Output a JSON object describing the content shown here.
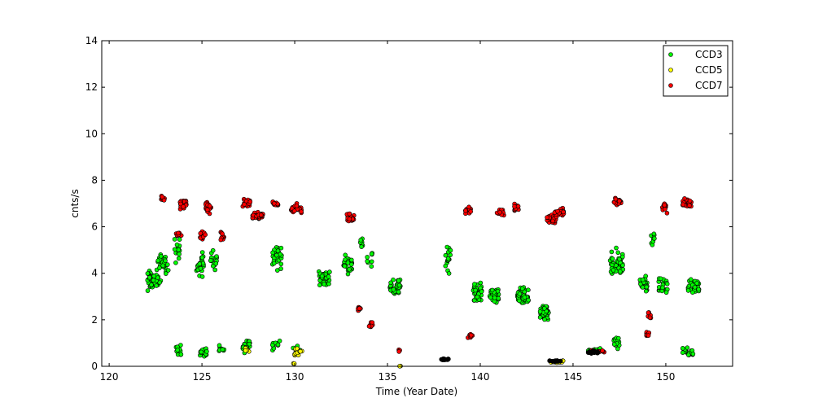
{
  "chart_data": {
    "type": "scatter",
    "title": "",
    "xlabel": "Time (Year Date)",
    "ylabel": "cnts/s",
    "xlim": [
      119.6,
      153.6
    ],
    "ylim": [
      0,
      14
    ],
    "xticks": [
      120,
      125,
      130,
      135,
      140,
      145,
      150
    ],
    "yticks": [
      0,
      2,
      4,
      6,
      8,
      10,
      12,
      14
    ],
    "grid": false,
    "legend_position": "top-right",
    "series": [
      {
        "name": "CCD3",
        "color": "#00ff00",
        "clusters": [
          {
            "x_start": 122.0,
            "x_end": 122.8,
            "y_center": 3.7,
            "y_spread": 0.6,
            "n": 45
          },
          {
            "x_start": 122.6,
            "x_end": 123.2,
            "y_center": 4.4,
            "y_spread": 0.6,
            "n": 25
          },
          {
            "x_start": 123.5,
            "x_end": 123.8,
            "y_center": 5.0,
            "y_spread": 0.8,
            "n": 15
          },
          {
            "x_start": 123.6,
            "x_end": 124.0,
            "y_center": 0.7,
            "y_spread": 0.3,
            "n": 12
          },
          {
            "x_start": 124.7,
            "x_end": 125.1,
            "y_center": 4.4,
            "y_spread": 0.8,
            "n": 25
          },
          {
            "x_start": 124.9,
            "x_end": 125.3,
            "y_center": 0.6,
            "y_spread": 0.3,
            "n": 15
          },
          {
            "x_start": 125.4,
            "x_end": 125.8,
            "y_center": 4.5,
            "y_spread": 0.6,
            "n": 15
          },
          {
            "x_start": 125.9,
            "x_end": 126.2,
            "y_center": 0.7,
            "y_spread": 0.3,
            "n": 10
          },
          {
            "x_start": 127.2,
            "x_end": 127.6,
            "y_center": 0.9,
            "y_spread": 0.4,
            "n": 25
          },
          {
            "x_start": 128.8,
            "x_end": 129.3,
            "y_center": 4.8,
            "y_spread": 0.8,
            "n": 30
          },
          {
            "x_start": 128.8,
            "x_end": 129.2,
            "y_center": 0.9,
            "y_spread": 0.3,
            "n": 10
          },
          {
            "x_start": 129.9,
            "x_end": 130.3,
            "y_center": 0.7,
            "y_spread": 0.3,
            "n": 10
          },
          {
            "x_start": 131.3,
            "x_end": 131.9,
            "y_center": 3.8,
            "y_spread": 0.5,
            "n": 35
          },
          {
            "x_start": 132.6,
            "x_end": 133.1,
            "y_center": 4.4,
            "y_spread": 0.5,
            "n": 25
          },
          {
            "x_start": 133.5,
            "x_end": 133.7,
            "y_center": 5.3,
            "y_spread": 0.3,
            "n": 8
          },
          {
            "x_start": 133.9,
            "x_end": 134.2,
            "y_center": 4.7,
            "y_spread": 0.5,
            "n": 8
          },
          {
            "x_start": 135.1,
            "x_end": 135.7,
            "y_center": 3.4,
            "y_spread": 0.5,
            "n": 40
          },
          {
            "x_start": 138.1,
            "x_end": 138.4,
            "y_center": 4.6,
            "y_spread": 0.8,
            "n": 15
          },
          {
            "x_start": 139.6,
            "x_end": 140.1,
            "y_center": 3.2,
            "y_spread": 0.5,
            "n": 40
          },
          {
            "x_start": 140.5,
            "x_end": 141.0,
            "y_center": 3.1,
            "y_spread": 0.5,
            "n": 35
          },
          {
            "x_start": 142.0,
            "x_end": 142.6,
            "y_center": 3.0,
            "y_spread": 0.5,
            "n": 45
          },
          {
            "x_start": 143.2,
            "x_end": 143.7,
            "y_center": 2.3,
            "y_spread": 0.4,
            "n": 45
          },
          {
            "x_start": 147.0,
            "x_end": 147.7,
            "y_center": 4.4,
            "y_spread": 0.8,
            "n": 45
          },
          {
            "x_start": 147.2,
            "x_end": 147.5,
            "y_center": 1.0,
            "y_spread": 0.4,
            "n": 15
          },
          {
            "x_start": 148.6,
            "x_end": 149.0,
            "y_center": 3.5,
            "y_spread": 0.5,
            "n": 30
          },
          {
            "x_start": 149.2,
            "x_end": 149.4,
            "y_center": 5.5,
            "y_spread": 0.6,
            "n": 8
          },
          {
            "x_start": 149.6,
            "x_end": 150.1,
            "y_center": 3.4,
            "y_spread": 0.5,
            "n": 25
          },
          {
            "x_start": 150.9,
            "x_end": 151.5,
            "y_center": 0.6,
            "y_spread": 0.3,
            "n": 25
          },
          {
            "x_start": 151.2,
            "x_end": 151.8,
            "y_center": 3.4,
            "y_spread": 0.5,
            "n": 30
          },
          {
            "x_start": 145.8,
            "x_end": 146.5,
            "y_center": 0.7,
            "y_spread": 0.1,
            "n": 15
          }
        ]
      },
      {
        "name": "CCD5",
        "color": "#ffff00",
        "clusters": [
          {
            "x_start": 127.3,
            "x_end": 127.6,
            "y_center": 0.7,
            "y_spread": 0.2,
            "n": 8
          },
          {
            "x_start": 129.9,
            "x_end": 130.4,
            "y_center": 0.6,
            "y_spread": 0.3,
            "n": 12
          },
          {
            "x_start": 129.9,
            "x_end": 130.0,
            "y_center": 0.1,
            "y_spread": 0.05,
            "n": 2
          },
          {
            "x_start": 135.6,
            "x_end": 135.8,
            "y_center": 0.02,
            "y_spread": 0.02,
            "n": 2
          },
          {
            "x_start": 143.8,
            "x_end": 144.5,
            "y_center": 0.2,
            "y_spread": 0.1,
            "n": 15
          }
        ]
      },
      {
        "name": "CCD7",
        "color": "#ff0000",
        "clusters": [
          {
            "x_start": 122.8,
            "x_end": 123.0,
            "y_center": 7.25,
            "y_spread": 0.2,
            "n": 8
          },
          {
            "x_start": 123.8,
            "x_end": 124.2,
            "y_center": 6.95,
            "y_spread": 0.3,
            "n": 20
          },
          {
            "x_start": 123.6,
            "x_end": 123.9,
            "y_center": 5.7,
            "y_spread": 0.2,
            "n": 8
          },
          {
            "x_start": 124.9,
            "x_end": 125.2,
            "y_center": 5.6,
            "y_spread": 0.3,
            "n": 12
          },
          {
            "x_start": 125.2,
            "x_end": 125.5,
            "y_center": 6.8,
            "y_spread": 0.35,
            "n": 20
          },
          {
            "x_start": 126.0,
            "x_end": 126.2,
            "y_center": 5.6,
            "y_spread": 0.3,
            "n": 10
          },
          {
            "x_start": 127.2,
            "x_end": 127.6,
            "y_center": 7.05,
            "y_spread": 0.3,
            "n": 20
          },
          {
            "x_start": 127.7,
            "x_end": 128.3,
            "y_center": 6.45,
            "y_spread": 0.2,
            "n": 30
          },
          {
            "x_start": 128.8,
            "x_end": 129.1,
            "y_center": 7.0,
            "y_spread": 0.2,
            "n": 10
          },
          {
            "x_start": 129.8,
            "x_end": 130.4,
            "y_center": 6.75,
            "y_spread": 0.3,
            "n": 30
          },
          {
            "x_start": 132.8,
            "x_end": 133.2,
            "y_center": 6.4,
            "y_spread": 0.3,
            "n": 18
          },
          {
            "x_start": 133.4,
            "x_end": 133.6,
            "y_center": 2.5,
            "y_spread": 0.2,
            "n": 8
          },
          {
            "x_start": 134.0,
            "x_end": 134.2,
            "y_center": 1.8,
            "y_spread": 0.2,
            "n": 8
          },
          {
            "x_start": 135.6,
            "x_end": 135.8,
            "y_center": 0.7,
            "y_spread": 0.1,
            "n": 4
          },
          {
            "x_start": 139.2,
            "x_end": 139.5,
            "y_center": 6.7,
            "y_spread": 0.2,
            "n": 12
          },
          {
            "x_start": 139.3,
            "x_end": 139.6,
            "y_center": 1.3,
            "y_spread": 0.1,
            "n": 8
          },
          {
            "x_start": 140.9,
            "x_end": 141.3,
            "y_center": 6.6,
            "y_spread": 0.2,
            "n": 15
          },
          {
            "x_start": 141.8,
            "x_end": 142.1,
            "y_center": 6.8,
            "y_spread": 0.25,
            "n": 12
          },
          {
            "x_start": 143.6,
            "x_end": 144.1,
            "y_center": 6.35,
            "y_spread": 0.3,
            "n": 30
          },
          {
            "x_start": 144.0,
            "x_end": 144.5,
            "y_center": 6.65,
            "y_spread": 0.25,
            "n": 25
          },
          {
            "x_start": 146.0,
            "x_end": 146.8,
            "y_center": 0.65,
            "y_spread": 0.08,
            "n": 15
          },
          {
            "x_start": 147.2,
            "x_end": 147.6,
            "y_center": 7.1,
            "y_spread": 0.3,
            "n": 20
          },
          {
            "x_start": 148.9,
            "x_end": 149.1,
            "y_center": 1.4,
            "y_spread": 0.15,
            "n": 8
          },
          {
            "x_start": 149.0,
            "x_end": 149.2,
            "y_center": 2.2,
            "y_spread": 0.3,
            "n": 8
          },
          {
            "x_start": 149.8,
            "x_end": 150.1,
            "y_center": 6.8,
            "y_spread": 0.3,
            "n": 10
          },
          {
            "x_start": 150.9,
            "x_end": 151.4,
            "y_center": 7.0,
            "y_spread": 0.3,
            "n": 25
          }
        ]
      },
      {
        "name": "",
        "color": "#000000",
        "clusters": [
          {
            "x_start": 137.9,
            "x_end": 138.3,
            "y_center": 0.3,
            "y_spread": 0.07,
            "n": 12
          },
          {
            "x_start": 143.7,
            "x_end": 144.4,
            "y_center": 0.22,
            "y_spread": 0.05,
            "n": 12
          },
          {
            "x_start": 145.8,
            "x_end": 146.4,
            "y_center": 0.6,
            "y_spread": 0.07,
            "n": 15
          }
        ]
      }
    ]
  }
}
